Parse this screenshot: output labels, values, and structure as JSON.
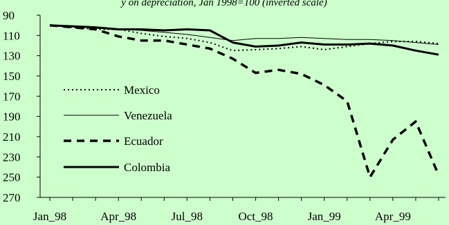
{
  "chart_data": {
    "type": "line",
    "title": "y on depreciation, Jan 1998=100 (inverted scale)",
    "xlabel": "",
    "ylabel": "",
    "ylim": [
      90,
      270
    ],
    "y_inverted": true,
    "y_ticks": [
      90,
      110,
      130,
      150,
      170,
      190,
      210,
      230,
      250,
      270
    ],
    "x_tick_labels": [
      "Jan_98",
      "Apr_98",
      "Jul_98",
      "Oct_98",
      "Jan_99",
      "Apr_99"
    ],
    "x_tick_index": [
      0,
      3,
      6,
      9,
      12,
      15
    ],
    "x": [
      "Jan_98",
      "Feb_98",
      "Mar_98",
      "Apr_98",
      "May_98",
      "Jun_98",
      "Jul_98",
      "Aug_98",
      "Sep_98",
      "Oct_98",
      "Nov_98",
      "Dec_98",
      "Jan_99",
      "Feb_99",
      "Mar_99",
      "Apr_99",
      "May_99",
      "Jun_99"
    ],
    "grid": false,
    "legend": "inside-left",
    "series": [
      {
        "name": "Mexico",
        "style": "dotted",
        "color": "#000000",
        "values": [
          100,
          102,
          104,
          104,
          108,
          111,
          113,
          117,
          125,
          124,
          123,
          121,
          124,
          121,
          118,
          116,
          116,
          118
        ]
      },
      {
        "name": "Venezuela",
        "style": "thin",
        "color": "#000000",
        "values": [
          100,
          101,
          103,
          104,
          105,
          107,
          109,
          112,
          115,
          113,
          113,
          112,
          113,
          114,
          114,
          115,
          117,
          119
        ]
      },
      {
        "name": "Ecuador",
        "style": "dashed",
        "color": "#000000",
        "values": [
          100,
          102,
          104,
          111,
          115,
          115,
          119,
          123,
          133,
          147,
          144,
          148,
          159,
          175,
          250,
          213,
          195,
          248
        ]
      },
      {
        "name": "Colombia",
        "style": "thick",
        "color": "#000000",
        "values": [
          100,
          101,
          102,
          104,
          104,
          105,
          104,
          105,
          117,
          121,
          120,
          117,
          119,
          119,
          118,
          120,
          125,
          129
        ]
      }
    ]
  }
}
